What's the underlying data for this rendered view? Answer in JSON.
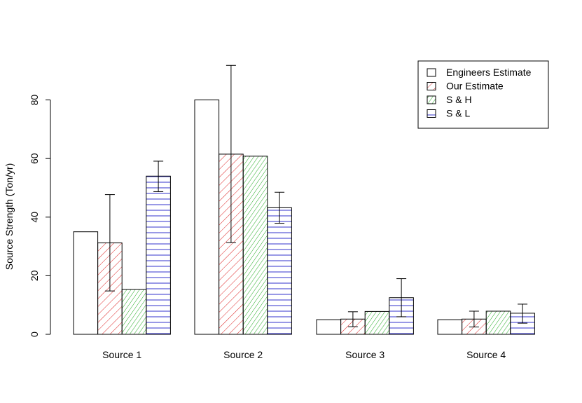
{
  "chart_data": {
    "type": "bar",
    "ylabel": "Source Strength (Ton/yr)",
    "xlabel": "",
    "ylim": [
      0,
      100
    ],
    "yticks": [
      0,
      20,
      40,
      60,
      80
    ],
    "categories": [
      "Source 1",
      "Source 2",
      "Source 3",
      "Source 4"
    ],
    "legend_position": "top-right",
    "series": [
      {
        "name": "Engineers Estimate",
        "color": "#000000",
        "pattern": "none",
        "values": [
          35,
          80,
          5,
          5
        ],
        "error_low": [
          null,
          null,
          null,
          null
        ],
        "error_high": [
          null,
          null,
          null,
          null
        ]
      },
      {
        "name": "Our Estimate",
        "color": "#dd2222",
        "pattern": "diagonal-steep",
        "values": [
          31.2,
          61.5,
          5.2,
          5.2
        ],
        "error_low": [
          14.8,
          31.3,
          2.6,
          2.5
        ],
        "error_high": [
          47.7,
          91.8,
          7.7,
          7.9
        ]
      },
      {
        "name": "S & H",
        "color": "#22aa22",
        "pattern": "diagonal-steeper",
        "values": [
          15.3,
          60.8,
          7.8,
          7.9
        ],
        "error_low": [
          null,
          null,
          null,
          null
        ],
        "error_high": [
          null,
          null,
          null,
          null
        ]
      },
      {
        "name": "S & L",
        "color": "#3333cc",
        "pattern": "horizontal",
        "values": [
          54,
          43.2,
          12.5,
          7.2
        ],
        "error_low": [
          48.7,
          37.9,
          6,
          3.8
        ],
        "error_high": [
          59.1,
          48.5,
          19,
          10.3
        ]
      }
    ]
  }
}
